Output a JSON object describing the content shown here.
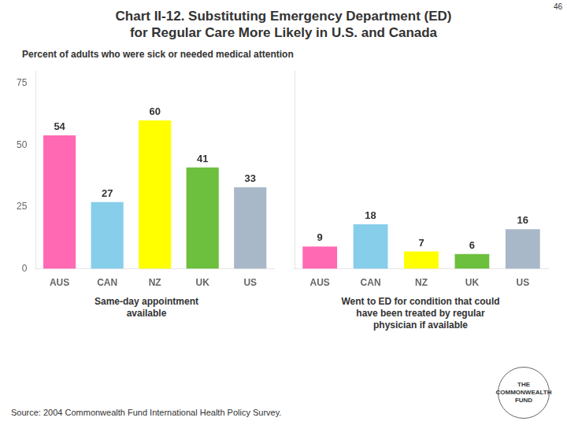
{
  "title": "Chart II-12. Substituting Emergency Department (ED)\nfor Regular Care More Likely in U.S. and Canada",
  "subtitle": "Percent of adults who were sick or needed medical attention",
  "source": "Source: 2004 Commonwealth Fund International Health Policy Survey.",
  "annotations": [
    "46",
    "THE",
    "COMMONWEALTH",
    "FUND"
  ],
  "chart_data": [
    {
      "type": "bar",
      "xlabel": "Same-day appointment\navailable",
      "categories": [
        "AUS",
        "CAN",
        "NZ",
        "UK",
        "US"
      ],
      "values": [
        54,
        27,
        60,
        41,
        33
      ],
      "colors": [
        "#FF69B4",
        "#87CEEB",
        "#FFFF00",
        "#6DBF3E",
        "#A8B8C8"
      ],
      "ylim": [
        0,
        80
      ],
      "yticks": [
        0,
        25,
        50,
        75
      ],
      "grid": false,
      "data_labels": true,
      "tick_labels": true
    },
    {
      "type": "bar",
      "xlabel": "Went to ED for condition that could\nhave been treated by regular\nphysician if available",
      "categories": [
        "AUS",
        "CAN",
        "NZ",
        "UK",
        "US"
      ],
      "values": [
        9,
        18,
        7,
        6,
        16
      ],
      "colors": [
        "#FF69B4",
        "#87CEEB",
        "#FFFF00",
        "#6DBF3E",
        "#A8B8C8"
      ],
      "ylim": [
        0,
        80
      ],
      "yticks": [
        0,
        25,
        50,
        75
      ],
      "grid": false,
      "data_labels": true,
      "tick_labels": "x"
    }
  ]
}
